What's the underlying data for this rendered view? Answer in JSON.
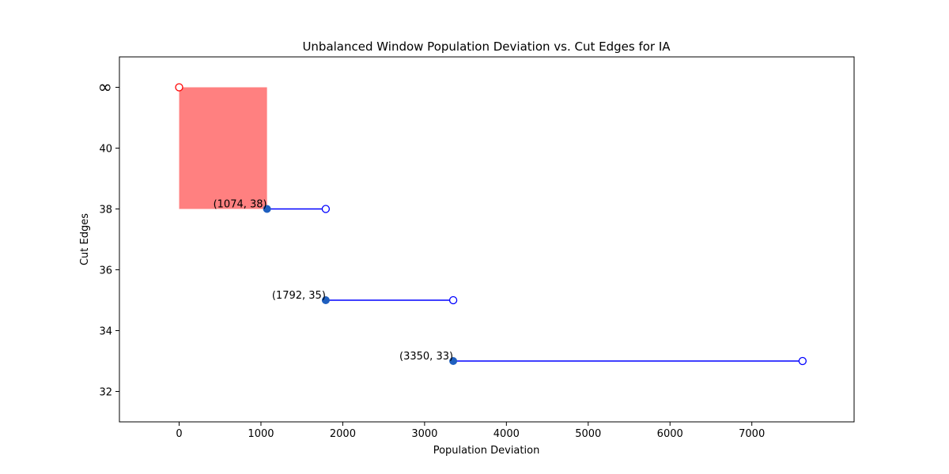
{
  "chart_data": {
    "type": "scatter",
    "title": "Unbalanced Window Population Deviation vs. Cut Edges for IA",
    "xlabel": "Population Deviation",
    "ylabel": "Cut Edges",
    "xlim": [
      -730,
      8250
    ],
    "ylim": [
      31,
      43
    ],
    "xticks": [
      0,
      1000,
      2000,
      3000,
      4000,
      5000,
      6000,
      7000
    ],
    "yticks": [
      32,
      34,
      36,
      38,
      40
    ],
    "infinity": {
      "label": "∞",
      "y_position": 42
    },
    "shaded_region": {
      "x": [
        0,
        1074
      ],
      "y": [
        38,
        42
      ],
      "color": "#ff8080"
    },
    "segments": [
      {
        "x_start": 1074,
        "x_end": 1792,
        "y": 38,
        "label": "(1074, 38)"
      },
      {
        "x_start": 1792,
        "x_end": 3350,
        "y": 35,
        "label": "(1792, 35)"
      },
      {
        "x_start": 3350,
        "x_end": 7620,
        "y": 33,
        "label": "(3350, 33)"
      }
    ],
    "infinity_point": {
      "x": 0
    },
    "colors": {
      "segment": "#0000ff",
      "filled_point": "#1f5fbf",
      "open_point_edge": "#0000ff",
      "infinity_point_edge": "#ff0000"
    },
    "grid": false,
    "legend": "none"
  }
}
